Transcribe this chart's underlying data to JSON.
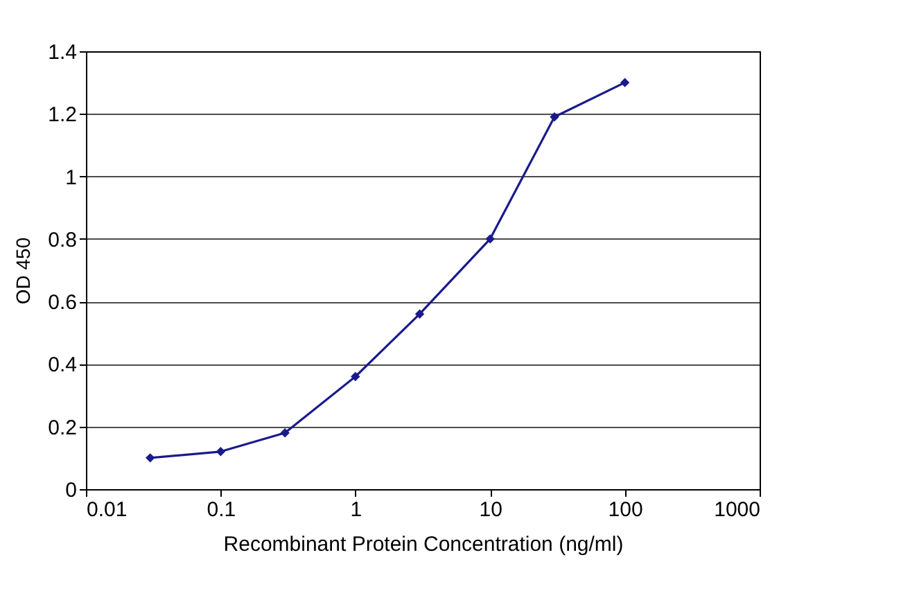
{
  "chart_data": {
    "type": "line",
    "xlabel": "Recombinant Protein Concentration (ng/ml)",
    "ylabel": "OD 450",
    "x": [
      0.03,
      0.1,
      0.3,
      1,
      3,
      10,
      30,
      100
    ],
    "series": [
      {
        "color": "#1a1a8c",
        "values": [
          0.1,
          0.12,
          0.18,
          0.36,
          0.56,
          0.8,
          1.19,
          1.3
        ]
      }
    ],
    "log": "x",
    "xlim": [
      0.01,
      1000
    ],
    "xticks": [
      0.01,
      0.1,
      1,
      10,
      100,
      1000
    ],
    "ylim": [
      0,
      1.4
    ],
    "yticks": [
      0,
      0.2,
      0.4,
      0.6,
      0.8,
      1,
      1.2,
      1.4
    ],
    "grid": "y",
    "marker": "diamond",
    "line_style": "solid"
  }
}
